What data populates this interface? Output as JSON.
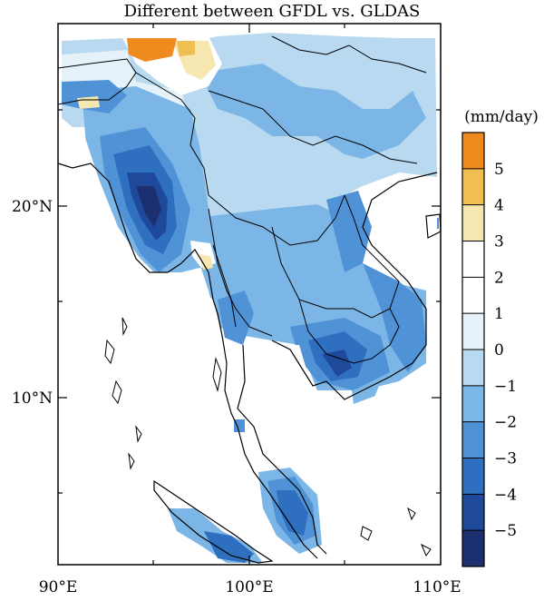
{
  "title": "Different between GFDL vs. GLDAS",
  "map": {
    "lat_labels": [
      "20°N",
      "10°N"
    ],
    "lon_labels": [
      "90°E",
      "100°E",
      "110°E"
    ]
  },
  "colorbar": {
    "unit": "(mm/day)",
    "colors": [
      "#1c2f6e",
      "#1f4a9b",
      "#2f6fbf",
      "#4f92d6",
      "#7cb6e6",
      "#b8d9f0",
      "#e6f2f9",
      "#ffffff",
      "#ffffff",
      "#f6e6b0",
      "#f0bf52",
      "#ef8a1e"
    ],
    "labels": [
      "5",
      "4",
      "3",
      "2",
      "1",
      "0",
      "-1",
      "-2",
      "-3",
      "-4",
      "-5"
    ]
  }
}
